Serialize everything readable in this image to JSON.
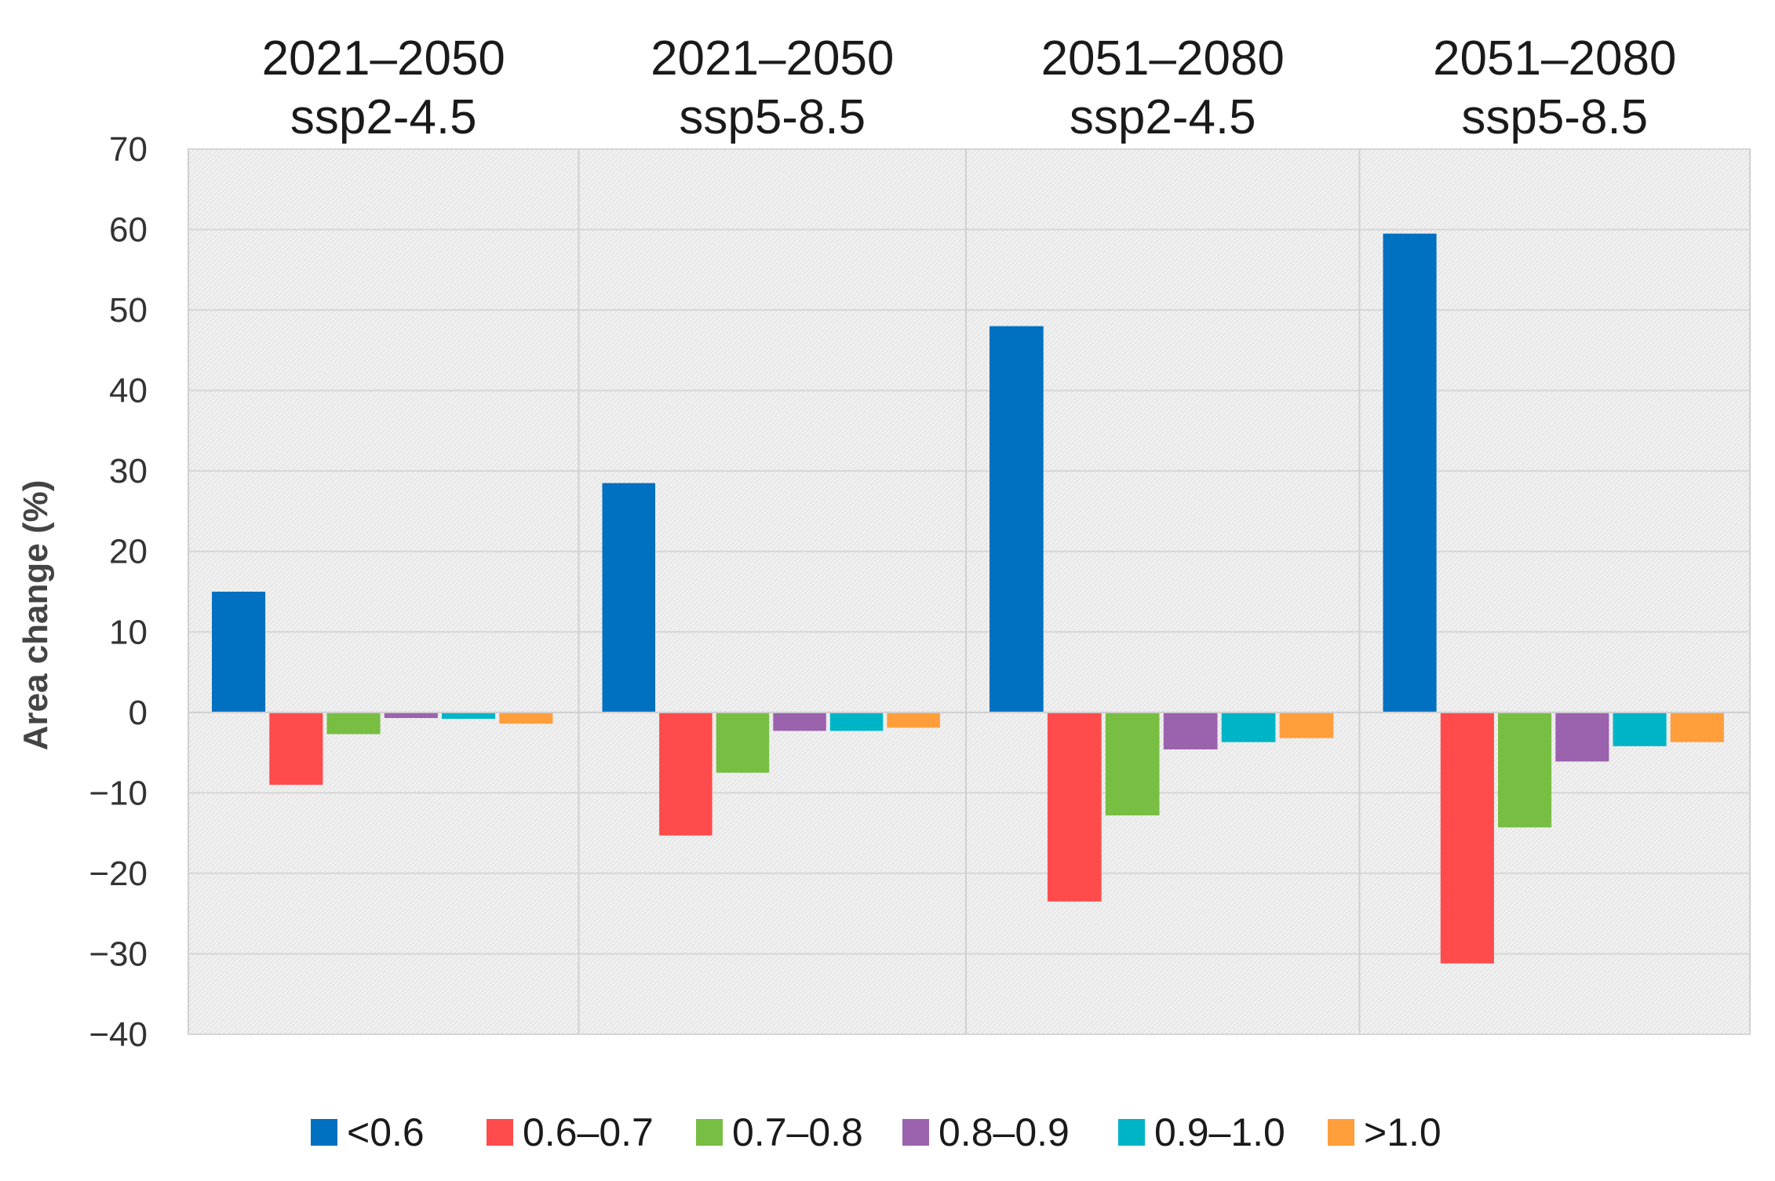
{
  "chart_data": {
    "type": "bar",
    "title": "",
    "ylabel": "Area change (%)",
    "xlabel": "",
    "ylim": [
      -40,
      70
    ],
    "yticks": [
      70,
      60,
      50,
      40,
      30,
      20,
      10,
      0,
      -10,
      -20,
      -30,
      -40
    ],
    "ytick_labels": [
      "70",
      "60",
      "50",
      "40",
      "30",
      "20",
      "10",
      "0",
      "−10",
      "−20",
      "−30",
      "−40"
    ],
    "grid": true,
    "legend_position": "bottom",
    "panels": [
      {
        "line1": "2021–2050",
        "line2": "ssp2-4.5"
      },
      {
        "line1": "2021–2050",
        "line2": "ssp5-8.5"
      },
      {
        "line1": "2051–2080",
        "line2": "ssp2-4.5"
      },
      {
        "line1": "2051–2080",
        "line2": "ssp5-8.5"
      }
    ],
    "series": [
      {
        "name": "<0.6",
        "color": "#0070c0",
        "values": [
          15,
          28.5,
          48,
          59.5
        ]
      },
      {
        "name": "0.6–0.7",
        "color": "#ff4b4b",
        "values": [
          -9,
          -15.3,
          -23.5,
          -31.2
        ]
      },
      {
        "name": "0.7–0.8",
        "color": "#77be43",
        "values": [
          -2.7,
          -7.5,
          -12.8,
          -14.3
        ]
      },
      {
        "name": "0.8–0.9",
        "color": "#9b62ad",
        "values": [
          -0.7,
          -2.3,
          -4.6,
          -6.1
        ]
      },
      {
        "name": "0.9–1.0",
        "color": "#00b4c8",
        "values": [
          -0.8,
          -2.3,
          -3.7,
          -4.2
        ]
      },
      {
        "name": ">1.0",
        "color": "#ff9e3b",
        "values": [
          -1.4,
          -1.9,
          -3.2,
          -3.7
        ]
      }
    ]
  }
}
